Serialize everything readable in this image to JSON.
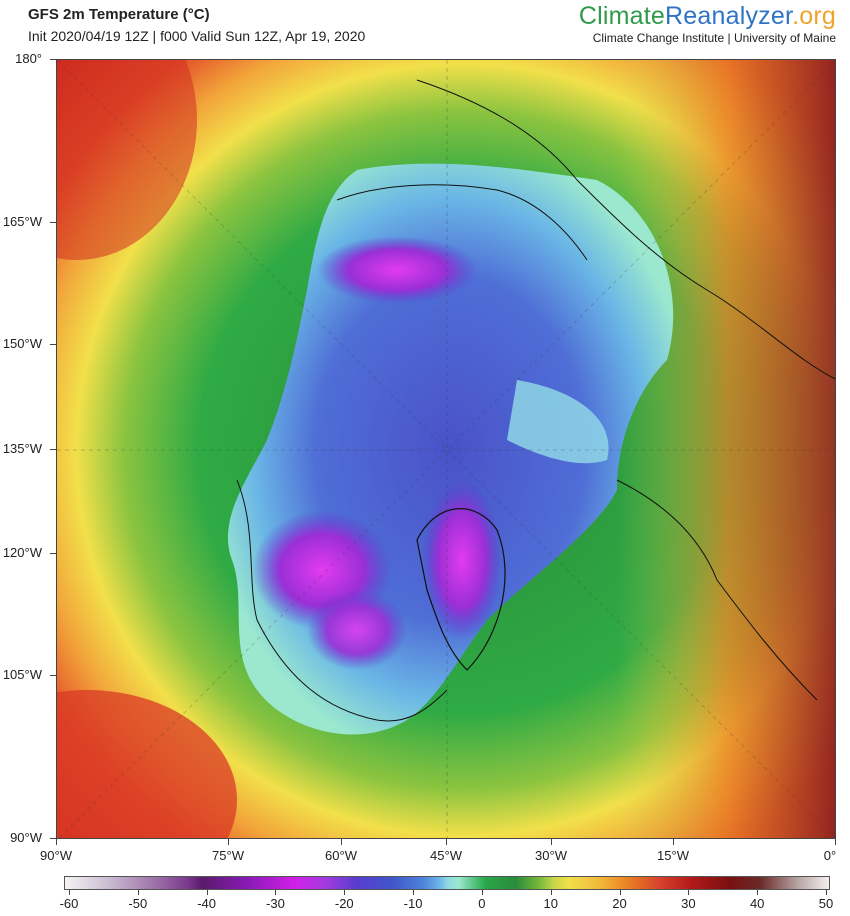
{
  "header": {
    "title": "GFS 2m Temperature (°C)",
    "subtitle": "Init 2020/04/19 12Z | f000 Valid Sun 12Z, Apr 19, 2020",
    "brand_part1": "Climate",
    "brand_part2": "Reanalyzer",
    "brand_part3": ".org",
    "affiliation": "Climate Change Institute | University of Maine"
  },
  "latitude_labels": [
    "180°",
    "165°W",
    "150°W",
    "135°W",
    "120°W",
    "105°W",
    "90°W"
  ],
  "longitude_labels": [
    "90°W",
    "75°W",
    "60°W",
    "45°W",
    "30°W",
    "15°W",
    "0°"
  ],
  "colorbar": {
    "labels": [
      "-60",
      "-50",
      "-40",
      "-30",
      "-20",
      "-10",
      "0",
      "10",
      "20",
      "30",
      "40",
      "50"
    ],
    "unit": "°C"
  },
  "colors": {
    "very_cold": "#d21fe8",
    "cold": "#3f57c9",
    "cool": "#8fd6e6",
    "mild": "#29a84a",
    "warm": "#f2e04a",
    "hot": "#d6402c",
    "very_hot": "#7a1010"
  }
}
